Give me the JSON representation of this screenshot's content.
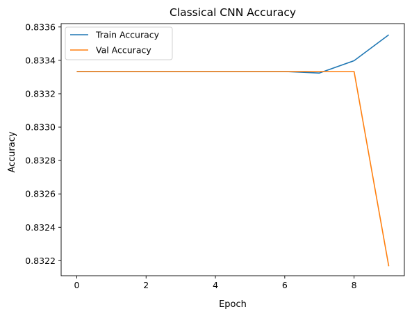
{
  "chart_data": {
    "type": "line",
    "title": "Classical CNN Accuracy",
    "xlabel": "Epoch",
    "ylabel": "Accuracy",
    "x": [
      0,
      1,
      2,
      3,
      4,
      5,
      6,
      7,
      8,
      9
    ],
    "xlim": [
      -0.45,
      9.45
    ],
    "ylim": [
      0.83211,
      0.83362
    ],
    "xticks": [
      0,
      2,
      4,
      6,
      8
    ],
    "xtick_labels": [
      "0",
      "2",
      "4",
      "6",
      "8"
    ],
    "yticks": [
      0.8322,
      0.8324,
      0.8326,
      0.8328,
      0.833,
      0.8332,
      0.8334,
      0.8336
    ],
    "ytick_labels": [
      "0.8322",
      "0.8324",
      "0.8326",
      "0.8328",
      "0.8330",
      "0.8332",
      "0.8334",
      "0.8336"
    ],
    "grid": false,
    "legend_position": "top-left",
    "series": [
      {
        "name": "Train Accuracy",
        "color": "#1f77b4",
        "values": [
          0.833333,
          0.833333,
          0.833333,
          0.833333,
          0.833333,
          0.833333,
          0.833333,
          0.833324,
          0.833398,
          0.833553
        ]
      },
      {
        "name": "Val Accuracy",
        "color": "#ff7f0e",
        "values": [
          0.833333,
          0.833333,
          0.833333,
          0.833333,
          0.833333,
          0.833333,
          0.833333,
          0.833333,
          0.833333,
          0.832167
        ]
      }
    ]
  }
}
